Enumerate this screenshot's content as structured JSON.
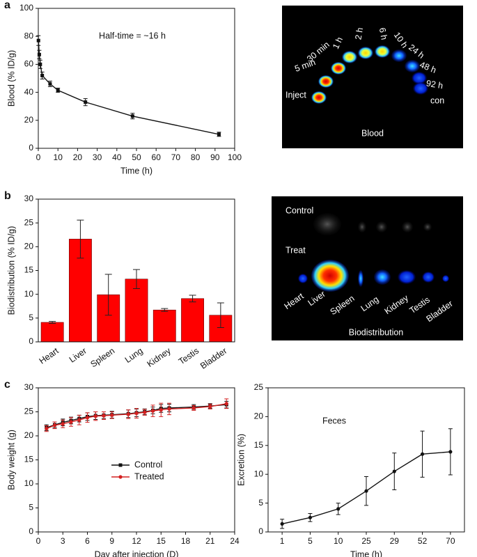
{
  "chart_data": [
    {
      "type": "line",
      "panel": "a",
      "annotation": "Half-time = ~16 h",
      "xlabel": "Time (h)",
      "ylabel": "Blood (% ID/g)",
      "x": [
        0.08,
        0.5,
        1,
        2,
        6,
        10,
        24,
        48,
        92
      ],
      "values": [
        77,
        67,
        60,
        52,
        46,
        41.5,
        33,
        23,
        10
      ],
      "errors": [
        3.5,
        3,
        3,
        2.5,
        2,
        1.5,
        2.5,
        2,
        1.5
      ],
      "color": "#111111",
      "marker": "square",
      "xlim": [
        0,
        100
      ],
      "xticks": [
        0,
        10,
        20,
        30,
        40,
        50,
        60,
        70,
        80,
        90,
        100
      ],
      "ylim": [
        0,
        100
      ],
      "yticks": [
        0,
        20,
        40,
        60,
        80,
        100
      ]
    },
    {
      "type": "bar",
      "panel": "b",
      "ylabel": "Biodistribution (% ID/g)",
      "categories": [
        "Heart",
        "Liver",
        "Spleen",
        "Lung",
        "Kidney",
        "Testis",
        "Bladder"
      ],
      "values": [
        4.1,
        21.6,
        9.9,
        13.2,
        6.7,
        9.1,
        5.6
      ],
      "errors": [
        0.2,
        4,
        4.3,
        2,
        0.3,
        0.7,
        2.6
      ],
      "color": "#ff0000",
      "ylim": [
        0,
        30
      ],
      "yticks": [
        0,
        5,
        10,
        15,
        20,
        25,
        30
      ]
    },
    {
      "type": "line",
      "panel": "c",
      "xlabel": "Day after injection (D)",
      "ylabel": "Body weight (g)",
      "legend": "lower center",
      "x": [
        1,
        2,
        3,
        4,
        5,
        6,
        7,
        8,
        9,
        11,
        12,
        13,
        14,
        15,
        16,
        19,
        21,
        23
      ],
      "series": [
        {
          "name": "Control",
          "color": "#111111",
          "marker": "square",
          "values": [
            21.7,
            22.3,
            22.8,
            23.2,
            23.6,
            24.0,
            24.2,
            24.3,
            24.4,
            24.6,
            24.8,
            25.0,
            25.3,
            25.7,
            25.8,
            26.0,
            26.2,
            26.5
          ],
          "errors": [
            0.6,
            0.6,
            0.7,
            0.7,
            0.7,
            0.8,
            0.8,
            0.7,
            0.7,
            0.8,
            0.8,
            0.6,
            0.7,
            0.8,
            0.8,
            0.5,
            0.5,
            0.7
          ]
        },
        {
          "name": "Treated",
          "color": "#d42020",
          "marker": "circle",
          "values": [
            21.5,
            22.2,
            22.5,
            22.9,
            23.3,
            23.8,
            24.1,
            24.2,
            24.3,
            24.5,
            24.7,
            24.9,
            25.2,
            25.4,
            25.6,
            25.8,
            26.1,
            26.7
          ],
          "errors": [
            0.6,
            0.7,
            0.8,
            0.9,
            1.0,
            1.0,
            0.9,
            0.8,
            0.7,
            0.9,
            1.0,
            0.6,
            1.2,
            1.4,
            1.2,
            0.5,
            0.5,
            1.0
          ]
        }
      ],
      "xlim": [
        0,
        24
      ],
      "xticks": [
        0,
        3,
        6,
        9,
        12,
        15,
        18,
        21,
        24
      ],
      "ylim": [
        0,
        30
      ],
      "yticks": [
        0,
        5,
        10,
        15,
        20,
        25,
        30
      ]
    },
    {
      "type": "line",
      "annotation": "Feces",
      "xlabel": "Time (h)",
      "ylabel": "Excretion (%)",
      "categories": [
        "1",
        "5",
        "10",
        "25",
        "29",
        "52",
        "70"
      ],
      "values": [
        1.4,
        2.5,
        4.0,
        7.1,
        10.5,
        13.5,
        13.9
      ],
      "errors": [
        0.8,
        0.7,
        1.0,
        2.5,
        3.2,
        4.0,
        4.0
      ],
      "color": "#111111",
      "marker": "circle",
      "ylim": [
        0,
        25
      ],
      "yticks": [
        0,
        5,
        10,
        15,
        20,
        25
      ]
    }
  ],
  "blood_image": {
    "labels": [
      "Inject",
      "5 min",
      "30 min",
      "1 h",
      "2 h",
      "6 h",
      "10 h",
      "24 h",
      "48 h",
      "92 h",
      "con"
    ],
    "caption": "Blood"
  },
  "biodistribution_image": {
    "groups": [
      "Control",
      "Treat"
    ],
    "organs": [
      "Heart",
      "Liver",
      "Spleen",
      "Lung",
      "Kidney",
      "Testis",
      "Bladder"
    ],
    "caption": "Biodistribution"
  }
}
